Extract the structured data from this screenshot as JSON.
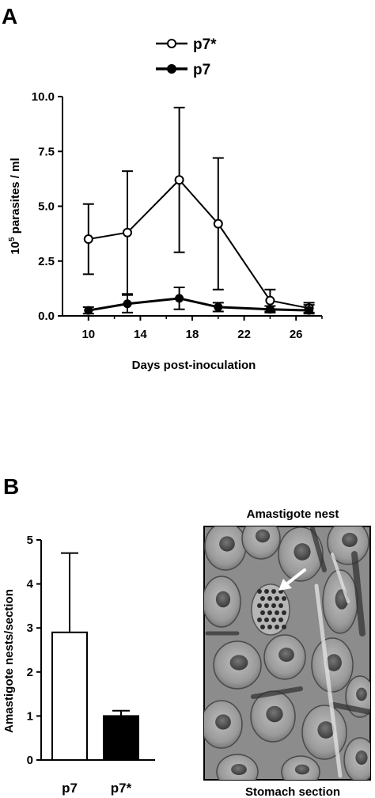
{
  "figure": {
    "panel_a_label": "A",
    "panel_b_label": "B"
  },
  "chart_data": [
    {
      "type": "line",
      "xlabel": "Days post-inoculation",
      "ylabel_base": "10",
      "ylabel_exp": "5",
      "ylabel_rest": " parasites / ml",
      "xlim": [
        8,
        28
      ],
      "ylim": [
        0,
        10
      ],
      "xticks": [
        10,
        14,
        18,
        22,
        26
      ],
      "yticks": [
        0,
        2.5,
        5,
        7.5,
        10
      ],
      "ytick_labels": [
        "0.0",
        "2.5",
        "5.0",
        "7.5",
        "10.0"
      ],
      "legend_position": "top",
      "series": [
        {
          "name": "p7*",
          "marker": "open-circle",
          "x": [
            10,
            13,
            17,
            20,
            24,
            27
          ],
          "y": [
            3.5,
            3.8,
            6.2,
            4.2,
            0.7,
            0.35
          ],
          "err_upper": [
            5.1,
            6.6,
            9.5,
            7.2,
            1.2,
            0.6
          ],
          "err_lower": [
            1.9,
            1.0,
            2.9,
            1.2,
            0.2,
            0.15
          ]
        },
        {
          "name": "p7",
          "marker": "filled-circle",
          "x": [
            10,
            13,
            17,
            20,
            24,
            27
          ],
          "y": [
            0.25,
            0.55,
            0.8,
            0.4,
            0.3,
            0.25
          ],
          "err_upper": [
            0.4,
            0.95,
            1.3,
            0.6,
            0.45,
            0.5
          ],
          "err_lower": [
            0.1,
            0.15,
            0.3,
            0.2,
            0.15,
            0.1
          ]
        }
      ]
    },
    {
      "type": "bar",
      "ylabel": "Amastigote nests/section",
      "ylim": [
        0,
        5
      ],
      "yticks": [
        0,
        1,
        2,
        3,
        4,
        5
      ],
      "categories": [
        "p7",
        "p7*"
      ],
      "values": [
        2.9,
        1.0
      ],
      "err_upper": [
        4.7,
        1.12
      ],
      "fill": [
        "#ffffff",
        "#000000"
      ]
    }
  ],
  "micrograph": {
    "title": "Amastigote nest",
    "caption": "Stomach section"
  }
}
